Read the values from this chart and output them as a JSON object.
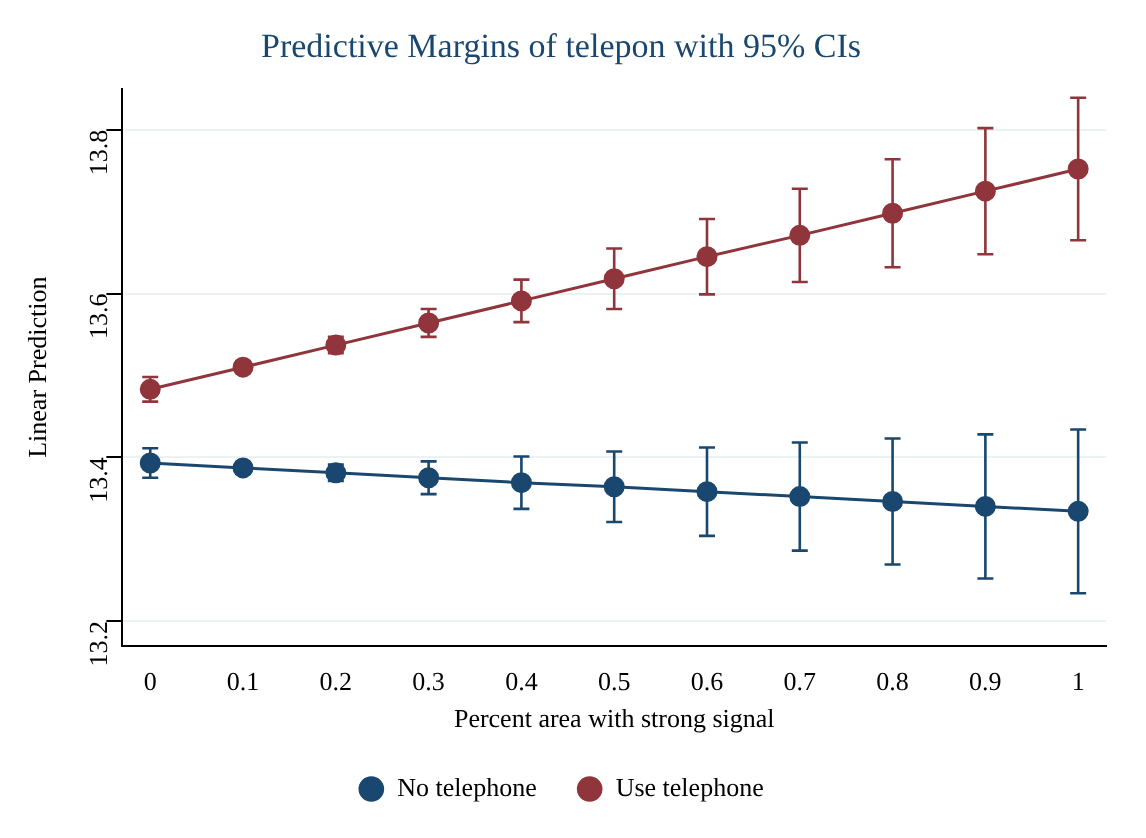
{
  "chart_data": {
    "type": "line",
    "title": "Predictive Margins of telepon with 95% CIs",
    "xlabel": "Percent area with strong signal",
    "ylabel": "Linear Prediction",
    "x": [
      0,
      0.1,
      0.2,
      0.3,
      0.4,
      0.5,
      0.6,
      0.7,
      0.8,
      0.9,
      1
    ],
    "series": [
      {
        "name": "No telephone",
        "color": "#1a476f",
        "values": [
          13.393,
          13.387,
          13.381,
          13.375,
          13.369,
          13.364,
          13.358,
          13.352,
          13.346,
          13.34,
          13.334
        ],
        "errors": [
          0.018,
          0.007,
          0.01,
          0.02,
          0.032,
          0.043,
          0.054,
          0.066,
          0.077,
          0.088,
          0.1
        ]
      },
      {
        "name": "Use telephone",
        "color": "#90353b",
        "values": [
          13.483,
          13.51,
          13.537,
          13.564,
          13.591,
          13.618,
          13.645,
          13.671,
          13.698,
          13.725,
          13.752
        ],
        "errors": [
          0.015,
          0.007,
          0.01,
          0.017,
          0.026,
          0.037,
          0.046,
          0.057,
          0.066,
          0.077,
          0.087
        ]
      }
    ],
    "xlim": [
      -0.03,
      1.03
    ],
    "xticks": [
      0,
      0.1,
      0.2,
      0.3,
      0.4,
      0.5,
      0.6,
      0.7,
      0.8,
      0.9,
      1
    ],
    "ylim": [
      13.17,
      13.85
    ],
    "yticks": [
      13.2,
      13.4,
      13.6,
      13.8
    ],
    "grid": "y",
    "legend": "bottom",
    "marker": "circle",
    "line_style": "solid"
  }
}
